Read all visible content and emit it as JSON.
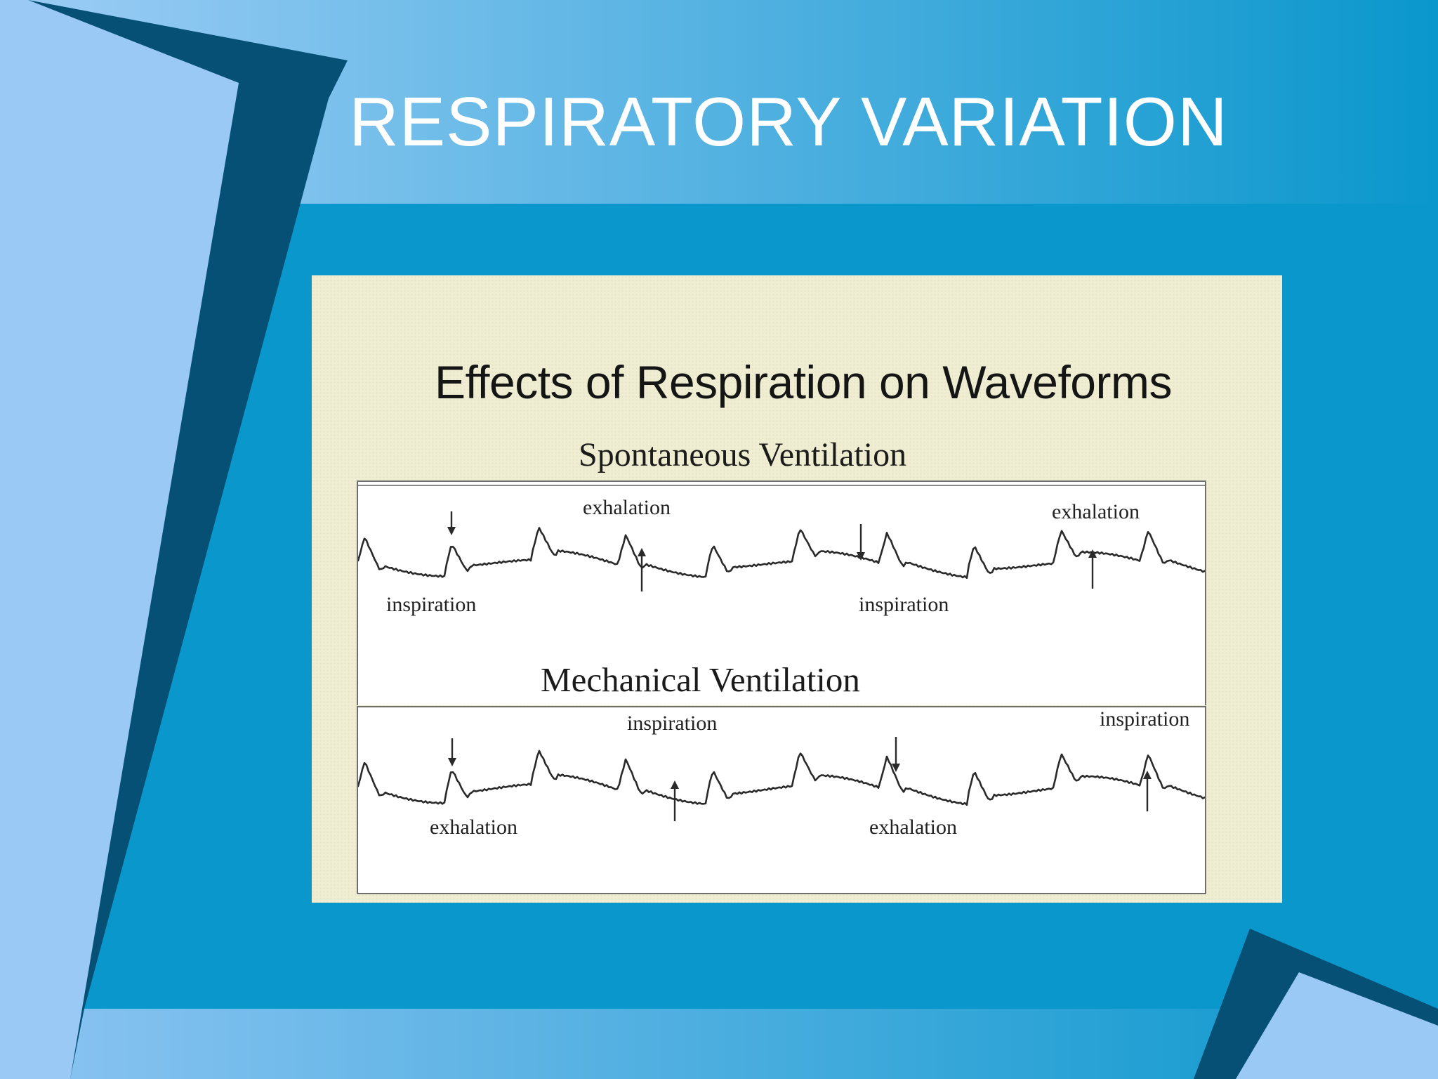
{
  "slide": {
    "title": "RESPIRATORY VARIATION"
  },
  "colors": {
    "background": "#0a97cc",
    "light_blue": "#9ac9f5",
    "dark_navy": "#055074",
    "figure_bg": "#efeed2",
    "title_text": "#ffffff"
  },
  "figure": {
    "title": "Effects of Respiration on Waveforms",
    "spontaneous": {
      "heading": "Spontaneous Ventilation",
      "labels": [
        "exhalation",
        "exhalation",
        "inspiration",
        "inspiration"
      ]
    },
    "mechanical": {
      "heading": "Mechanical Ventilation",
      "labels": [
        "inspiration",
        "inspiration",
        "exhalation",
        "exhalation"
      ]
    }
  }
}
